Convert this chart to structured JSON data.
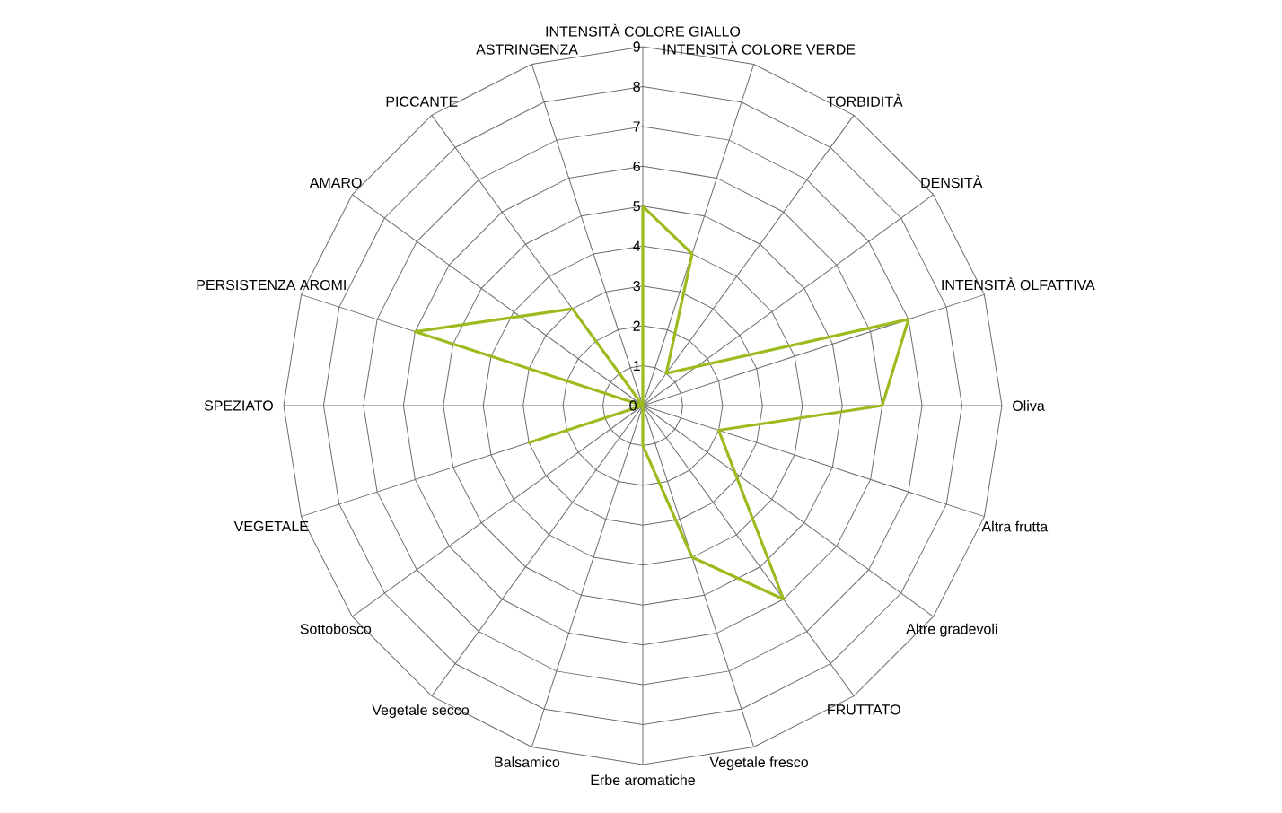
{
  "chart_data": {
    "type": "radar",
    "categories": [
      "INTENSITÀ COLORE GIALLO",
      "INTENSITÀ COLORE VERDE",
      "TORBIDITÀ",
      "DENSITÀ",
      "INTENSITÀ OLFATTIVA",
      "Oliva",
      "Altra frutta",
      "Altre gradevoli",
      "FRUTTATO",
      "Vegetale fresco",
      "Erbe aromatiche",
      "Balsamico",
      "Vegetale secco",
      "Sottobosco",
      "VEGETALE",
      "SPEZIATO",
      "PERSISTENZA AROMI",
      "AMARO",
      "PICCANTE",
      "ASTRINGENZA"
    ],
    "series": [
      {
        "color": "#9bbb1e",
        "values": [
          5,
          4,
          1,
          null,
          7,
          6,
          2,
          null,
          6,
          4,
          1,
          0,
          0,
          0,
          3,
          0,
          6,
          null,
          3,
          0
        ]
      }
    ],
    "ylim": [
      0,
      9
    ],
    "yticks": [
      0,
      1,
      2,
      3,
      4,
      5,
      6,
      7,
      8,
      9
    ],
    "grid": true
  }
}
